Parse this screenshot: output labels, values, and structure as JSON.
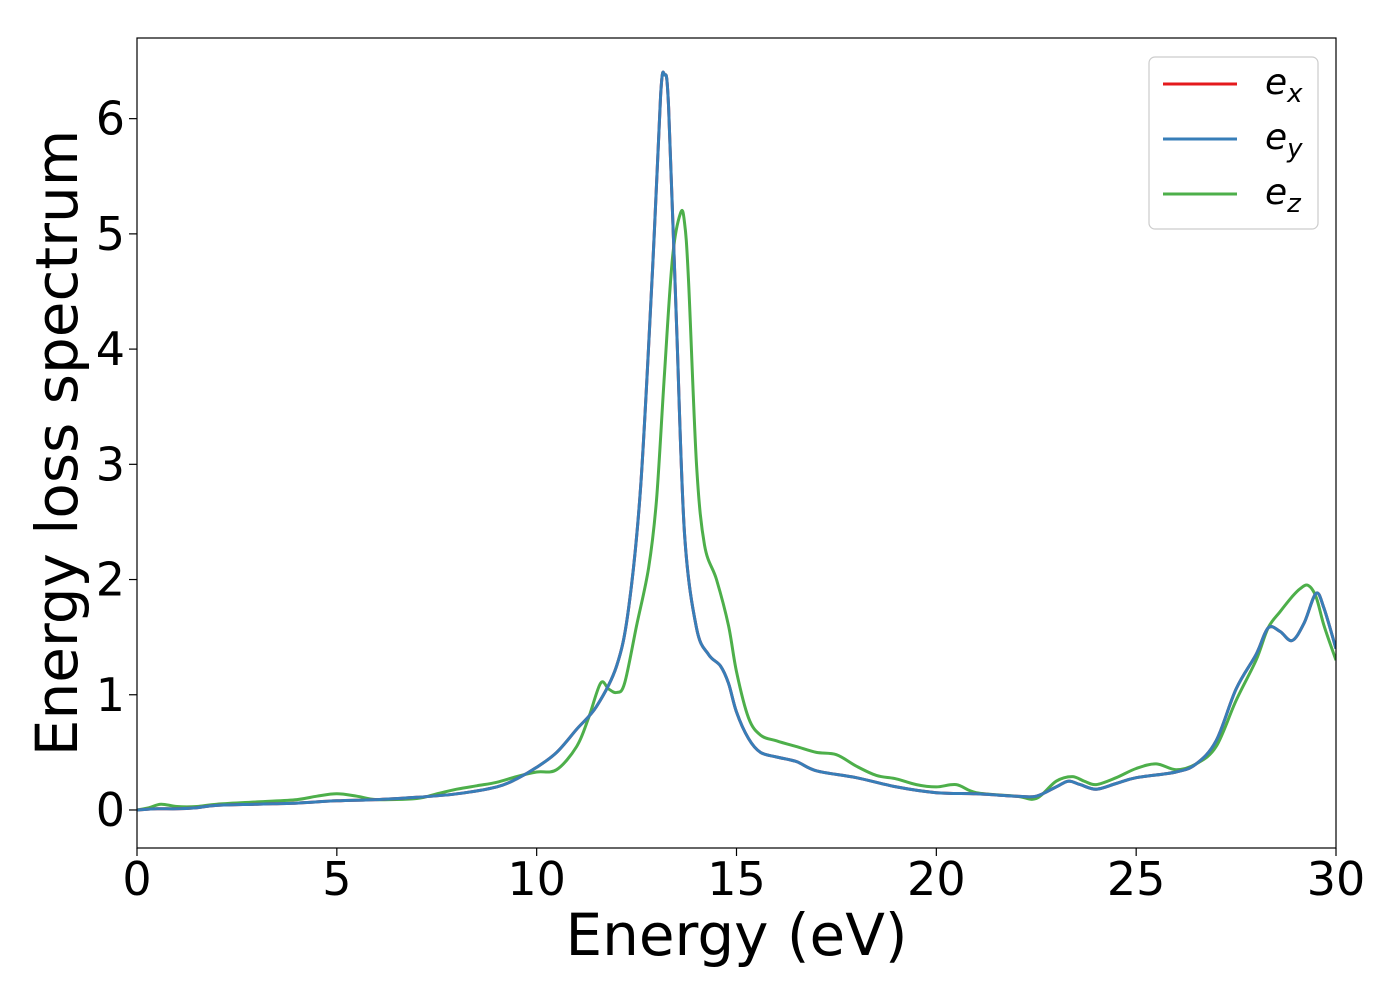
{
  "chart_data": {
    "type": "line",
    "title": "",
    "xlabel": "Energy (eV)",
    "ylabel": "Energy loss spectrum",
    "xlim": [
      0,
      30
    ],
    "ylim": [
      -0.33,
      6.7
    ],
    "xticks": [
      0,
      5,
      10,
      15,
      20,
      25,
      30
    ],
    "yticks": [
      0,
      1,
      2,
      3,
      4,
      5,
      6
    ],
    "grid": false,
    "legend_position": "top-right",
    "series": [
      {
        "name": "e_x",
        "label_base": "e",
        "label_sub": "x",
        "color": "#e41a1c",
        "x": [
          0,
          0.5,
          1,
          1.5,
          2,
          3,
          4,
          5,
          6,
          7,
          8,
          9,
          9.5,
          10,
          10.5,
          11,
          11.5,
          12,
          12.3,
          12.6,
          12.9,
          13.1,
          13.2,
          13.3,
          13.5,
          13.7,
          14,
          14.3,
          14.6,
          14.8,
          15,
          15.3,
          15.6,
          16,
          16.5,
          17,
          18,
          19,
          20,
          21,
          22,
          22.5,
          23,
          23.3,
          23.6,
          24,
          24.5,
          25,
          26,
          26.5,
          27,
          27.5,
          28,
          28.3,
          28.6,
          28.9,
          29.2,
          29.5,
          29.7,
          30
        ],
        "y": [
          0.0,
          0.01,
          0.01,
          0.02,
          0.04,
          0.05,
          0.06,
          0.08,
          0.09,
          0.11,
          0.14,
          0.2,
          0.27,
          0.37,
          0.5,
          0.7,
          0.9,
          1.25,
          1.75,
          2.8,
          4.7,
          6.2,
          6.38,
          6.1,
          4.2,
          2.4,
          1.58,
          1.35,
          1.25,
          1.1,
          0.85,
          0.62,
          0.5,
          0.46,
          0.42,
          0.34,
          0.28,
          0.2,
          0.15,
          0.14,
          0.12,
          0.12,
          0.2,
          0.25,
          0.22,
          0.18,
          0.23,
          0.28,
          0.33,
          0.4,
          0.6,
          1.05,
          1.35,
          1.58,
          1.55,
          1.47,
          1.62,
          1.88,
          1.75,
          1.4
        ]
      },
      {
        "name": "e_y",
        "label_base": "e",
        "label_sub": "y",
        "color": "#377eb8",
        "x": [
          0,
          0.5,
          1,
          1.5,
          2,
          3,
          4,
          5,
          6,
          7,
          8,
          9,
          9.5,
          10,
          10.5,
          11,
          11.5,
          12,
          12.3,
          12.6,
          12.9,
          13.1,
          13.2,
          13.3,
          13.5,
          13.7,
          14,
          14.3,
          14.6,
          14.8,
          15,
          15.3,
          15.6,
          16,
          16.5,
          17,
          18,
          19,
          20,
          21,
          22,
          22.5,
          23,
          23.3,
          23.6,
          24,
          24.5,
          25,
          26,
          26.5,
          27,
          27.5,
          28,
          28.3,
          28.6,
          28.9,
          29.2,
          29.5,
          29.7,
          30
        ],
        "y": [
          0.0,
          0.01,
          0.01,
          0.02,
          0.04,
          0.05,
          0.06,
          0.08,
          0.09,
          0.11,
          0.14,
          0.2,
          0.27,
          0.37,
          0.5,
          0.7,
          0.9,
          1.25,
          1.75,
          2.8,
          4.7,
          6.2,
          6.38,
          6.1,
          4.2,
          2.4,
          1.58,
          1.35,
          1.25,
          1.1,
          0.85,
          0.62,
          0.5,
          0.46,
          0.42,
          0.34,
          0.28,
          0.2,
          0.15,
          0.14,
          0.12,
          0.12,
          0.2,
          0.25,
          0.22,
          0.18,
          0.23,
          0.28,
          0.33,
          0.4,
          0.6,
          1.05,
          1.35,
          1.58,
          1.55,
          1.47,
          1.62,
          1.88,
          1.75,
          1.4
        ]
      },
      {
        "name": "e_z",
        "label_base": "e",
        "label_sub": "z",
        "color": "#4daf4a",
        "x": [
          0,
          0.3,
          0.6,
          1,
          1.5,
          2,
          3,
          4,
          4.5,
          5,
          5.5,
          6,
          7,
          7.5,
          8,
          8.5,
          9,
          9.5,
          10,
          10.5,
          11,
          11.3,
          11.6,
          11.8,
          12,
          12.2,
          12.5,
          12.8,
          13,
          13.2,
          13.4,
          13.6,
          13.7,
          13.8,
          14,
          14.2,
          14.5,
          14.8,
          15,
          15.3,
          15.6,
          16,
          16.5,
          17,
          17.5,
          18,
          18.5,
          19,
          19.5,
          20,
          20.5,
          21,
          22,
          22.5,
          23,
          23.4,
          23.7,
          24,
          24.5,
          25,
          25.5,
          26,
          26.5,
          27,
          27.5,
          28,
          28.3,
          28.6,
          28.9,
          29.1,
          29.3,
          29.5,
          29.7,
          30
        ],
        "y": [
          0.0,
          0.02,
          0.05,
          0.03,
          0.03,
          0.05,
          0.07,
          0.09,
          0.12,
          0.14,
          0.12,
          0.09,
          0.1,
          0.14,
          0.18,
          0.21,
          0.24,
          0.29,
          0.33,
          0.35,
          0.55,
          0.8,
          1.1,
          1.05,
          1.02,
          1.1,
          1.6,
          2.1,
          2.7,
          3.8,
          4.8,
          5.18,
          5.1,
          4.6,
          3.0,
          2.3,
          2.0,
          1.6,
          1.2,
          0.8,
          0.65,
          0.6,
          0.55,
          0.5,
          0.48,
          0.38,
          0.3,
          0.27,
          0.22,
          0.2,
          0.22,
          0.15,
          0.12,
          0.1,
          0.25,
          0.29,
          0.25,
          0.22,
          0.28,
          0.36,
          0.4,
          0.35,
          0.4,
          0.55,
          0.95,
          1.3,
          1.58,
          1.72,
          1.85,
          1.92,
          1.95,
          1.85,
          1.6,
          1.3
        ]
      }
    ]
  }
}
